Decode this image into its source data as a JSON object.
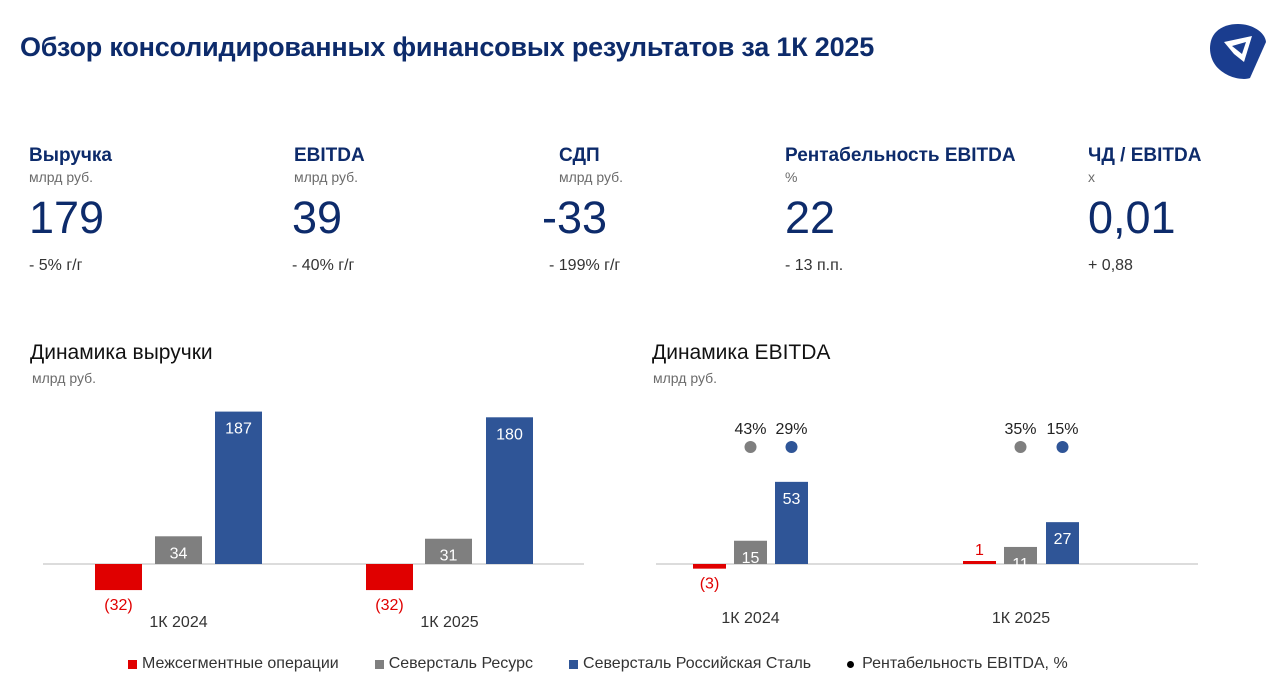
{
  "page": {
    "title": "Обзор консолидированных финансовых результатов за 1К 2025"
  },
  "colors": {
    "title": "#0d2b6b",
    "red": "#e00000",
    "gray": "#7f7f7f",
    "blue": "#2f5597",
    "black": "#000000"
  },
  "kpis": [
    {
      "label": "Выручка",
      "unit": "млрд руб.",
      "value": "179",
      "change": "- 5% г/г"
    },
    {
      "label": "EBITDA",
      "unit": "млрд руб.",
      "value": "39",
      "change": "- 40% г/г"
    },
    {
      "label": "СДП",
      "unit": "млрд руб.",
      "value": "-33",
      "change": "- 199% г/г"
    },
    {
      "label": "Рентабельность EBITDA",
      "unit": "%",
      "value": "22",
      "change": "- 13 п.п."
    },
    {
      "label": "ЧД / EBITDA",
      "unit": "x",
      "value": "0,01",
      "change": "+ 0,88"
    }
  ],
  "chart_data": [
    {
      "type": "bar",
      "title": "Динамика выручки",
      "unit": "млрд руб.",
      "categories": [
        "1К 2024",
        "1К 2025"
      ],
      "series": [
        {
          "name": "Межсегментные операции",
          "color": "#e00000",
          "values": [
            -32,
            -32
          ],
          "labels": [
            "(32)",
            "(32)"
          ]
        },
        {
          "name": "Северсталь Ресурс",
          "color": "#7f7f7f",
          "values": [
            34,
            31
          ],
          "labels": [
            "34",
            "31"
          ]
        },
        {
          "name": "Северсталь Российская Сталь",
          "color": "#2f5597",
          "values": [
            187,
            180
          ],
          "labels": [
            "187",
            "180"
          ]
        }
      ]
    },
    {
      "type": "bar",
      "title": "Динамика EBITDA",
      "unit": "млрд руб.",
      "categories": [
        "1К 2024",
        "1К 2025"
      ],
      "series": [
        {
          "name": "Межсегментные операции",
          "color": "#e00000",
          "values": [
            -3,
            1
          ],
          "labels": [
            "(3)",
            "1"
          ]
        },
        {
          "name": "Северсталь Ресурс",
          "color": "#7f7f7f",
          "values": [
            15,
            11
          ],
          "labels": [
            "15",
            "11"
          ],
          "margins": [
            "43%",
            "35%"
          ]
        },
        {
          "name": "Северсталь Российская Сталь",
          "color": "#2f5597",
          "values": [
            53,
            27
          ],
          "labels": [
            "53",
            "27"
          ],
          "margins": [
            "29%",
            "15%"
          ]
        }
      ],
      "margin_series_name": "Рентабельность EBITDA, %"
    }
  ],
  "legend": [
    {
      "label": "Межсегментные операции",
      "color": "#e00000",
      "shape": "square"
    },
    {
      "label": "Северсталь Ресурс",
      "color": "#7f7f7f",
      "shape": "square"
    },
    {
      "label": "Северсталь Российская Сталь",
      "color": "#2f5597",
      "shape": "square"
    },
    {
      "label": "Рентабельность EBITDA, %",
      "color": "#000000",
      "shape": "dot"
    }
  ]
}
